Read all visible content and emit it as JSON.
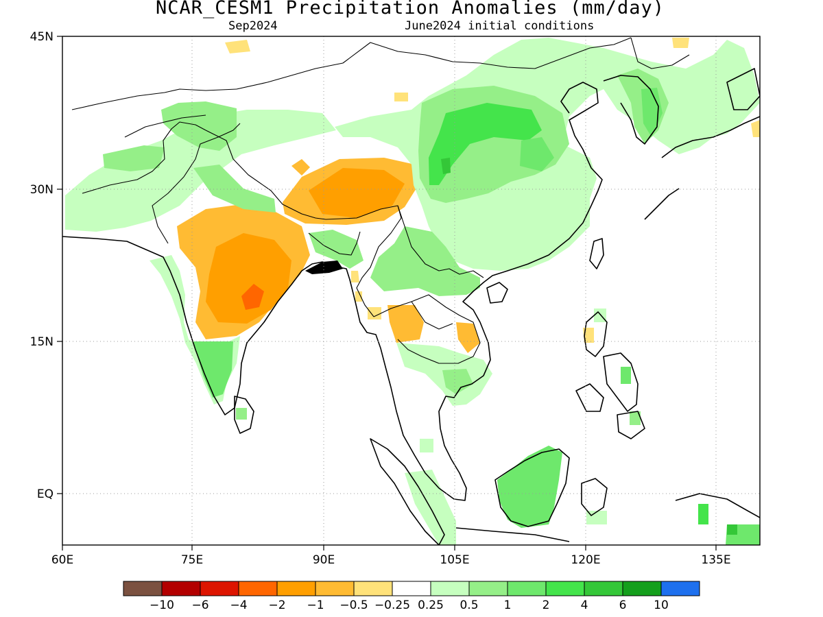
{
  "title": "NCAR_CESM1 Precipitation Anomalies (mm/day)",
  "valid_month": "Sep2024",
  "init_label": "June2024 initial conditions",
  "map": {
    "lon_range": [
      60,
      140
    ],
    "lat_range": [
      -6,
      45
    ],
    "lon_ticks": [
      "60E",
      "75E",
      "90E",
      "105E",
      "120E",
      "135E"
    ],
    "lat_ticks": [
      "EQ",
      "15N",
      "30N",
      "45N"
    ],
    "grid": "dotted"
  },
  "legend": {
    "colors": [
      "#7b5140",
      "#b30000",
      "#dd1500",
      "#ff6600",
      "#ff9f00",
      "#ffbb33",
      "#ffe27a",
      "#ffffff",
      "#c6ffbf",
      "#95ef88",
      "#6ee86c",
      "#44e44b",
      "#34c738",
      "#149f1c",
      "#1e70ee"
    ],
    "labels": [
      "−10",
      "−6",
      "−4",
      "−2",
      "−1",
      "−0.5",
      "−0.25",
      "0.25",
      "0.5",
      "1",
      "2",
      "4",
      "6",
      "10"
    ]
  }
}
